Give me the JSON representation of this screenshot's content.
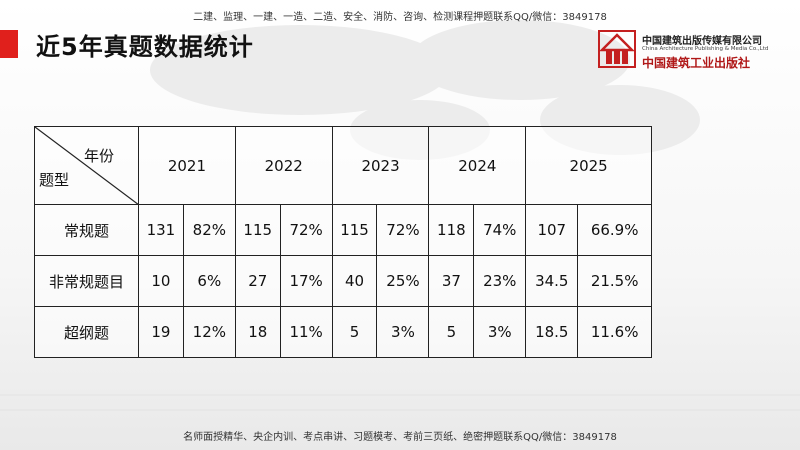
{
  "top_banner": "二建、监理、一建、一造、二造、安全、消防、咨询、检测课程押题联系QQ/微信：3849178",
  "title": "近5年真题数据统计",
  "publisher": {
    "cn_name": "中国建筑出版传媒有限公司",
    "en_name": "China Architecture Publishing & Media Co.,Ltd",
    "brand": "中国建筑工业出版社"
  },
  "table": {
    "corner_year": "年份",
    "corner_type": "题型",
    "years": [
      "2021",
      "2022",
      "2023",
      "2024",
      "2025"
    ],
    "rows": [
      {
        "label": "常规题",
        "cells": [
          "131",
          "82%",
          "115",
          "72%",
          "115",
          "72%",
          "118",
          "74%",
          "107",
          "66.9%"
        ]
      },
      {
        "label": "非常规题目",
        "cells": [
          "10",
          "6%",
          "27",
          "17%",
          "40",
          "25%",
          "37",
          "23%",
          "34.5",
          "21.5%"
        ]
      },
      {
        "label": "超纲题",
        "cells": [
          "19",
          "12%",
          "18",
          "11%",
          "5",
          "3%",
          "5",
          "3%",
          "18.5",
          "11.6%"
        ]
      }
    ]
  },
  "bottom_banner": "名师面授精华、央企内训、考点串讲、习题模考、考前三页纸、绝密押题联系QQ/微信：3849178",
  "colors": {
    "accent": "#e0201c",
    "brand_red": "#b01818"
  }
}
